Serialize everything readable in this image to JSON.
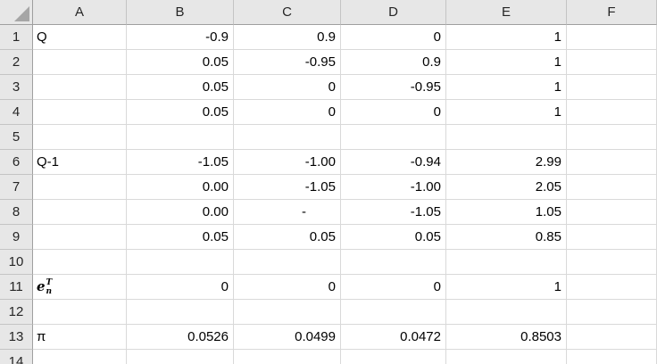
{
  "sheet": {
    "columns": [
      "A",
      "B",
      "C",
      "D",
      "E",
      "F"
    ],
    "rows": [
      {
        "num": "1",
        "values": [
          "Q",
          "-0.9",
          "0.9",
          "0",
          "1",
          ""
        ]
      },
      {
        "num": "2",
        "values": [
          "",
          "0.05",
          "-0.95",
          "0.9",
          "1",
          ""
        ]
      },
      {
        "num": "3",
        "values": [
          "",
          "0.05",
          "0",
          "-0.95",
          "1",
          ""
        ]
      },
      {
        "num": "4",
        "values": [
          "",
          "0.05",
          "0",
          "0",
          "1",
          ""
        ]
      },
      {
        "num": "5",
        "values": [
          "",
          "",
          "",
          "",
          "",
          ""
        ]
      },
      {
        "num": "6",
        "values": [
          "Q-1",
          "-1.05",
          "-1.00",
          "-0.94",
          "2.99",
          ""
        ]
      },
      {
        "num": "7",
        "values": [
          "",
          "0.00",
          "-1.05",
          "-1.00",
          "2.05",
          ""
        ]
      },
      {
        "num": "8",
        "values": [
          "",
          "0.00",
          "-",
          "-1.05",
          "1.05",
          ""
        ]
      },
      {
        "num": "9",
        "values": [
          "",
          "0.05",
          "0.05",
          "0.05",
          "0.85",
          ""
        ]
      },
      {
        "num": "10",
        "values": [
          "",
          "",
          "",
          "",
          "",
          ""
        ]
      },
      {
        "num": "11",
        "values": [
          "e_n^T",
          "0",
          "0",
          "0",
          "1",
          ""
        ]
      },
      {
        "num": "12",
        "values": [
          "",
          "",
          "",
          "",
          "",
          ""
        ]
      },
      {
        "num": "13",
        "values": [
          "π",
          "0.0526",
          "0.0499",
          "0.0472",
          "0.8503",
          ""
        ]
      },
      {
        "num": "14",
        "values": [
          "",
          "",
          "",
          "",
          "",
          ""
        ]
      }
    ],
    "math_label": {
      "base": "e",
      "sup": "T",
      "sub": "n"
    },
    "accounting_dash": "-",
    "colors": {
      "header_bg": "#E7E7E7",
      "header_text": "#262626",
      "header_divider": "#C4C4C4",
      "header_edge": "#9F9F9F",
      "gridline": "#D9D9D9",
      "cell_bg": "#FFFFFF",
      "cell_text": "#000000",
      "corner_triangle": "#A6A6A6"
    }
  }
}
